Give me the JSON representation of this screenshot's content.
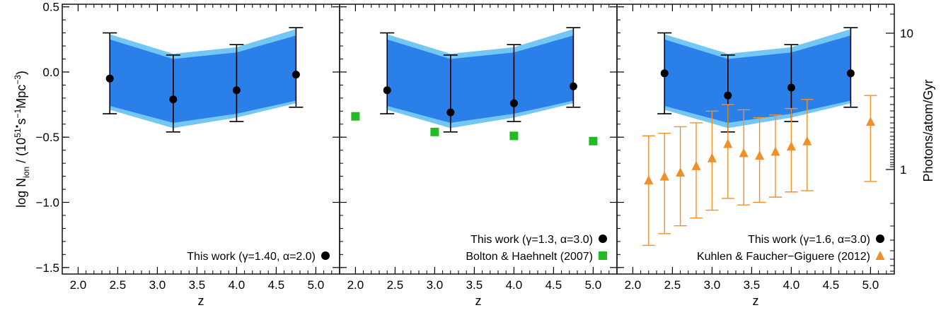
{
  "chart_data": [
    {
      "type": "scatter",
      "xlabel": "z",
      "ylabel": "log Ṅ_ion / (10^51 s^-1 Mpc^-3)",
      "xlim": [
        1.8,
        5.3
      ],
      "ylim": [
        -1.55,
        0.52
      ],
      "x_ticks": [
        "2.0",
        "2.5",
        "3.0",
        "3.5",
        "4.0",
        "4.5",
        "5.0"
      ],
      "y_ticks": [
        "0.5",
        "0.0",
        "-0.5",
        "-1.0",
        "-1.5"
      ],
      "band": {
        "x": [
          2.4,
          3.2,
          4.0,
          4.75
        ],
        "outer_lower": [
          -0.29,
          -0.43,
          -0.35,
          -0.24
        ],
        "outer_upper": [
          0.29,
          0.14,
          0.19,
          0.33
        ],
        "inner_lower": [
          -0.26,
          -0.39,
          -0.32,
          -0.22
        ],
        "inner_upper": [
          0.25,
          0.1,
          0.15,
          0.28
        ]
      },
      "series": [
        {
          "name": "This work (γ=1.40, α=2.0)",
          "marker": "circle",
          "x": [
            2.4,
            3.2,
            4.0,
            4.75
          ],
          "y": [
            -0.05,
            -0.21,
            -0.14,
            -0.02
          ],
          "y_err_lower": [
            -0.32,
            -0.46,
            -0.38,
            -0.27
          ],
          "y_err_upper": [
            0.3,
            0.13,
            0.21,
            0.34
          ]
        }
      ]
    },
    {
      "type": "scatter",
      "xlabel": "z",
      "xlim": [
        1.8,
        5.3
      ],
      "ylim": [
        -1.55,
        0.52
      ],
      "x_ticks": [
        "2.0",
        "2.5",
        "3.0",
        "3.5",
        "4.0",
        "4.5",
        "5.0"
      ],
      "band": {
        "x": [
          2.4,
          3.2,
          4.0,
          4.75
        ],
        "outer_lower": [
          -0.29,
          -0.43,
          -0.35,
          -0.24
        ],
        "outer_upper": [
          0.29,
          0.14,
          0.19,
          0.33
        ],
        "inner_lower": [
          -0.26,
          -0.39,
          -0.32,
          -0.22
        ],
        "inner_upper": [
          0.25,
          0.1,
          0.15,
          0.28
        ]
      },
      "series": [
        {
          "name": "This work (γ=1.3, α=3.0)",
          "marker": "circle",
          "x": [
            2.4,
            3.2,
            4.0,
            4.75
          ],
          "y": [
            -0.14,
            -0.31,
            -0.24,
            -0.11
          ],
          "y_err_lower": [
            -0.32,
            -0.46,
            -0.38,
            -0.27
          ],
          "y_err_upper": [
            0.3,
            0.13,
            0.21,
            0.34
          ]
        },
        {
          "name": "Bolton & Haehnelt (2007)",
          "marker": "square",
          "color": "#22bb22",
          "x": [
            2.0,
            3.0,
            4.0,
            5.0
          ],
          "y": [
            -0.34,
            -0.46,
            -0.49,
            -0.53
          ]
        }
      ]
    },
    {
      "type": "scatter",
      "xlabel": "z",
      "ylabel_right": "Photons/atom/Gyr",
      "xlim": [
        1.8,
        5.3
      ],
      "ylim": [
        -1.55,
        0.52
      ],
      "x_ticks": [
        "2.0",
        "2.5",
        "3.0",
        "3.5",
        "4.0",
        "4.5",
        "5.0"
      ],
      "right_ticks": [
        "10",
        "1"
      ],
      "band": {
        "x": [
          2.4,
          3.2,
          4.0,
          4.75
        ],
        "outer_lower": [
          -0.29,
          -0.43,
          -0.35,
          -0.24
        ],
        "outer_upper": [
          0.29,
          0.14,
          0.19,
          0.33
        ],
        "inner_lower": [
          -0.26,
          -0.39,
          -0.32,
          -0.22
        ],
        "inner_upper": [
          0.25,
          0.1,
          0.15,
          0.28
        ]
      },
      "series": [
        {
          "name": "This work (γ=1.6, α=3.0)",
          "marker": "circle",
          "x": [
            2.4,
            3.2,
            4.0,
            4.75
          ],
          "y": [
            -0.01,
            -0.18,
            -0.12,
            -0.01
          ],
          "y_err_lower": [
            -0.32,
            -0.46,
            -0.38,
            -0.27
          ],
          "y_err_upper": [
            0.3,
            0.13,
            0.21,
            0.34
          ]
        },
        {
          "name": "Kuhlen & Faucher−Giguere (2012)",
          "marker": "triangle",
          "color": "#f0902a",
          "x": [
            2.2,
            2.4,
            2.6,
            2.8,
            3.0,
            3.2,
            3.4,
            3.6,
            3.8,
            4.0,
            4.2,
            5.0
          ],
          "y": [
            -0.83,
            -0.8,
            -0.77,
            -0.72,
            -0.66,
            -0.55,
            -0.62,
            -0.64,
            -0.61,
            -0.57,
            -0.53,
            -0.38
          ],
          "y_err_lower": [
            -1.33,
            -1.24,
            -1.18,
            -1.12,
            -1.06,
            -0.97,
            -1.02,
            -1.0,
            -0.96,
            -0.92,
            -0.91,
            -0.84
          ],
          "y_err_upper": [
            -0.49,
            -0.47,
            -0.42,
            -0.39,
            -0.3,
            -0.25,
            -0.29,
            -0.35,
            -0.33,
            -0.28,
            -0.21,
            -0.18
          ]
        }
      ]
    }
  ],
  "colors": {
    "band_outer": "#74c7f4",
    "band_inner": "#2b7fe8",
    "this_work": "#000000",
    "bolton": "#22bb22",
    "kuhlen": "#f0902a"
  }
}
